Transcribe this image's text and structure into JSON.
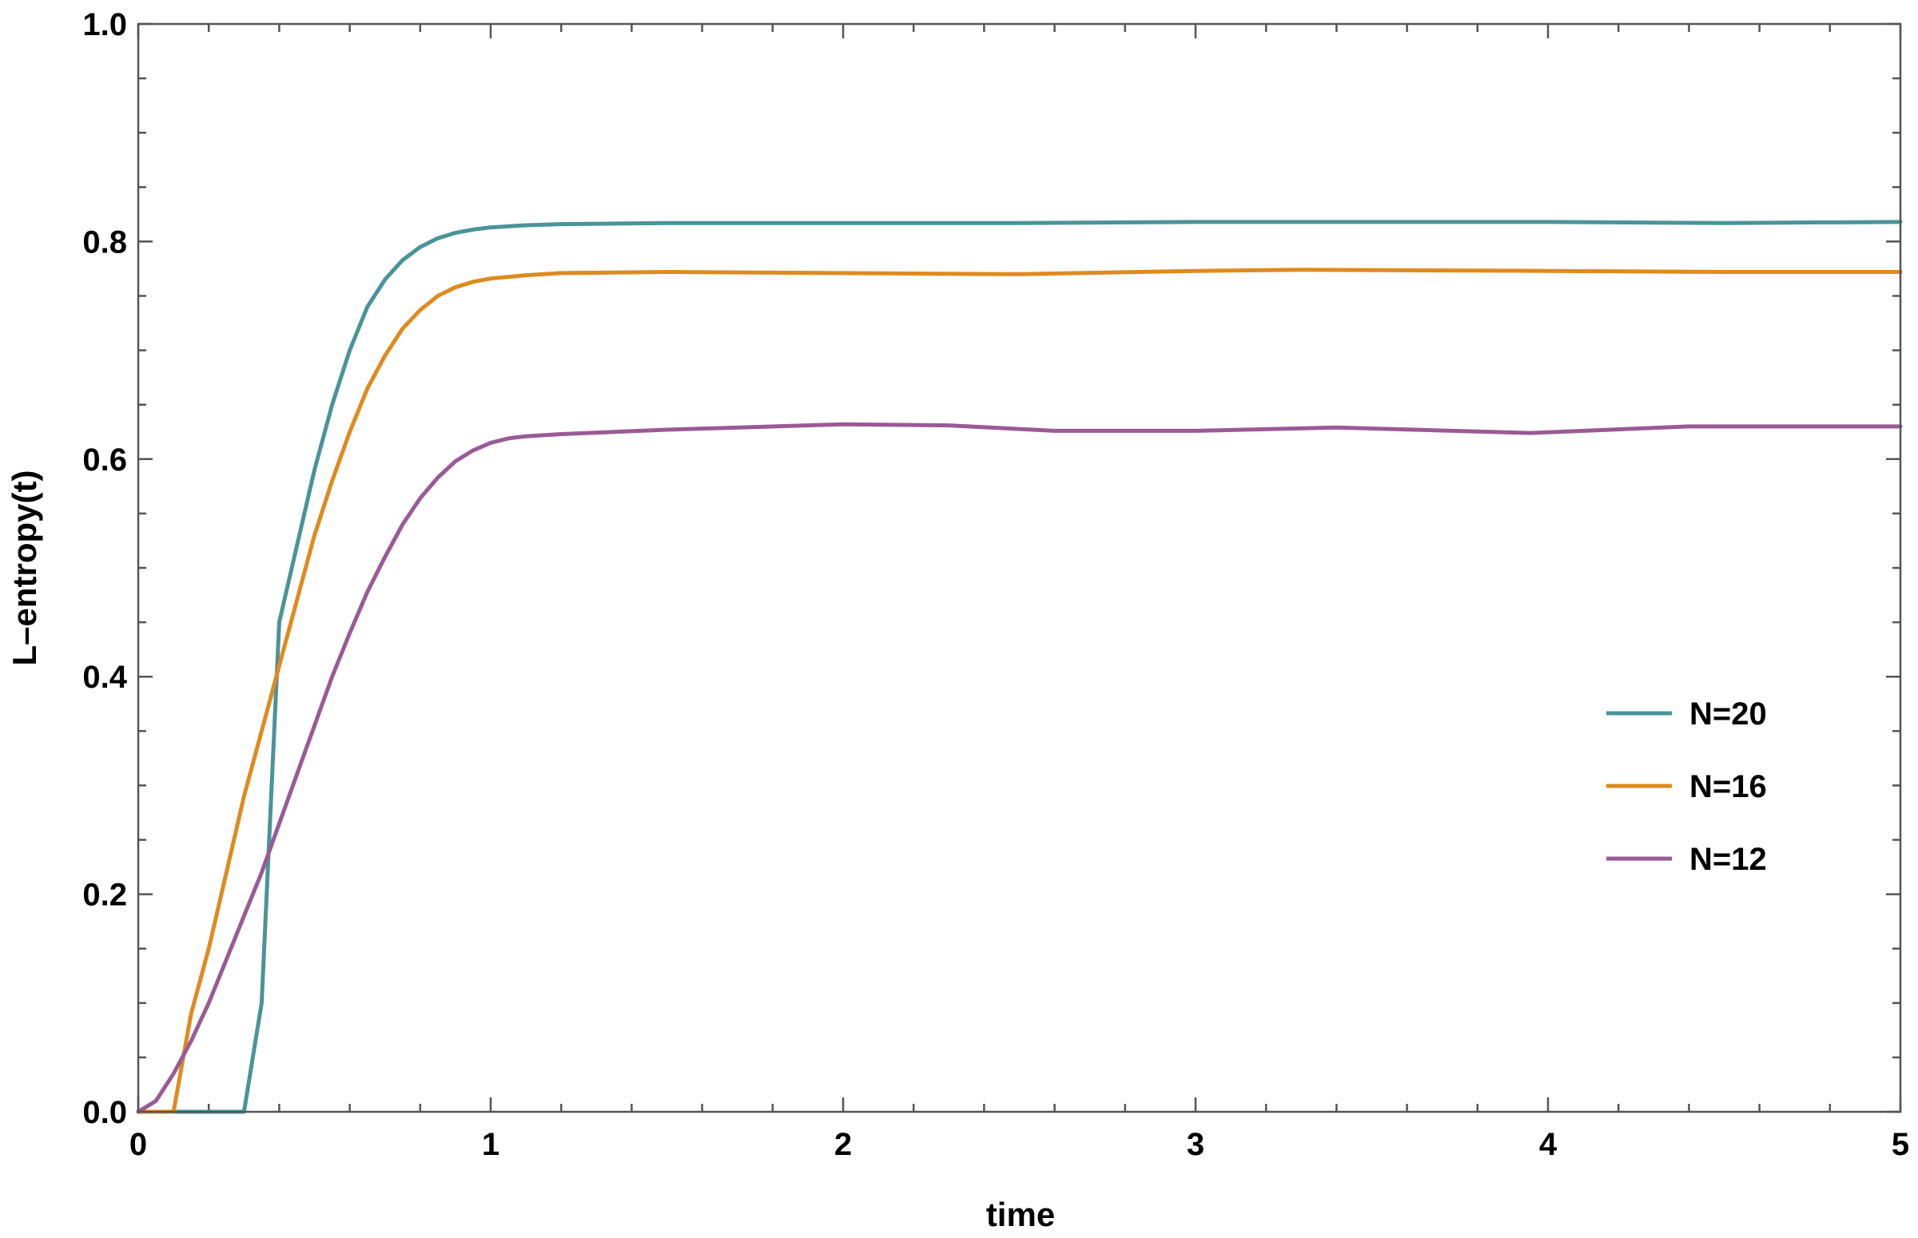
{
  "chart_data": {
    "type": "line",
    "title": "",
    "xlabel": "time",
    "ylabel": "L–entropy(t)",
    "xlim": [
      0,
      5
    ],
    "ylim": [
      0,
      1
    ],
    "x_ticks": [
      0,
      1,
      2,
      3,
      4,
      5
    ],
    "x_tick_labels": [
      "0",
      "1",
      "2",
      "3",
      "4",
      "5"
    ],
    "y_ticks": [
      0,
      0.2,
      0.4,
      0.6,
      0.8,
      1.0
    ],
    "y_tick_labels": [
      "0.0",
      "0.2",
      "0.4",
      "0.6",
      "0.8",
      "1.0"
    ],
    "x_minor_step": 0.2,
    "y_minor_step": 0.05,
    "grid": false,
    "legend_position": "right",
    "series": [
      {
        "name": "N=20",
        "color": "#4a9499",
        "x": [
          0,
          0.1,
          0.2,
          0.3,
          0.35,
          0.4,
          0.45,
          0.5,
          0.55,
          0.6,
          0.65,
          0.7,
          0.75,
          0.8,
          0.85,
          0.9,
          0.95,
          1.0,
          1.1,
          1.2,
          1.5,
          2.0,
          2.5,
          3.0,
          3.5,
          4.0,
          4.5,
          5.0
        ],
        "y": [
          0,
          0,
          0,
          0,
          0.1,
          0.45,
          0.52,
          0.59,
          0.65,
          0.7,
          0.74,
          0.765,
          0.783,
          0.795,
          0.803,
          0.808,
          0.811,
          0.813,
          0.815,
          0.816,
          0.817,
          0.817,
          0.817,
          0.818,
          0.818,
          0.818,
          0.817,
          0.818
        ]
      },
      {
        "name": "N=16",
        "color": "#e08a1e",
        "x": [
          0,
          0.05,
          0.1,
          0.15,
          0.2,
          0.25,
          0.3,
          0.35,
          0.4,
          0.45,
          0.5,
          0.55,
          0.6,
          0.65,
          0.7,
          0.75,
          0.8,
          0.85,
          0.9,
          0.95,
          1.0,
          1.1,
          1.2,
          1.5,
          2.0,
          2.5,
          3.0,
          3.3,
          4.0,
          4.5,
          5.0
        ],
        "y": [
          0,
          0,
          0,
          0.09,
          0.15,
          0.22,
          0.29,
          0.35,
          0.41,
          0.47,
          0.53,
          0.58,
          0.625,
          0.665,
          0.695,
          0.72,
          0.737,
          0.75,
          0.758,
          0.763,
          0.766,
          0.769,
          0.771,
          0.772,
          0.771,
          0.77,
          0.773,
          0.774,
          0.773,
          0.772,
          0.772
        ]
      },
      {
        "name": "N=12",
        "color": "#9a5a96",
        "x": [
          0,
          0.05,
          0.1,
          0.15,
          0.2,
          0.25,
          0.3,
          0.35,
          0.4,
          0.45,
          0.5,
          0.55,
          0.6,
          0.65,
          0.7,
          0.75,
          0.8,
          0.85,
          0.9,
          0.95,
          1.0,
          1.05,
          1.1,
          1.2,
          1.5,
          2.0,
          2.3,
          2.6,
          3.0,
          3.4,
          3.95,
          4.4,
          5.0
        ],
        "y": [
          0,
          0.01,
          0.035,
          0.065,
          0.1,
          0.14,
          0.18,
          0.22,
          0.265,
          0.31,
          0.355,
          0.4,
          0.44,
          0.478,
          0.51,
          0.54,
          0.564,
          0.583,
          0.598,
          0.608,
          0.615,
          0.619,
          0.621,
          0.623,
          0.627,
          0.632,
          0.631,
          0.626,
          0.626,
          0.629,
          0.624,
          0.63,
          0.63
        ]
      }
    ]
  }
}
